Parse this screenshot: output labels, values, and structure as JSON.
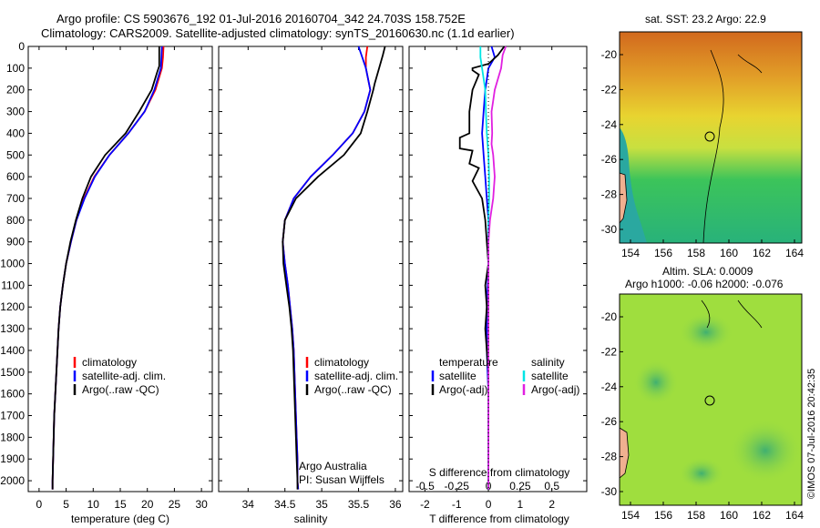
{
  "header": {
    "line1": "Argo profile: CS 5903676_192 01-Jul-2016 20160704_342 24.703S 158.752E",
    "line2": "Climatology: CARS2009. Satellite-adjusted climatology: synTS_20160630.nc (1.1d earlier)"
  },
  "colors": {
    "climatology": "#ff0000",
    "satellite": "#0000ff",
    "argo": "#000000",
    "salinity_satellite": "#00e5e5",
    "salinity_argo": "#e020e0"
  },
  "depth_axis": {
    "ticks": [
      "0",
      "100",
      "200",
      "300",
      "400",
      "500",
      "600",
      "700",
      "800",
      "900",
      "1000",
      "1100",
      "1200",
      "1300",
      "1400",
      "1500",
      "1600",
      "1700",
      "1800",
      "1900",
      "2000"
    ]
  },
  "legend_temperature": {
    "items": [
      "climatology",
      "satellite-adj. clim.",
      "Argo(..raw -QC)"
    ]
  },
  "legend_salinity": {
    "items": [
      "climatology",
      "satellite-adj. clim.",
      "Argo(..raw -QC)"
    ]
  },
  "legend_difference": {
    "temperature_title": "temperature",
    "salinity_title": "salinity",
    "temperature_items": [
      "satellite",
      "Argo(-adj)"
    ],
    "salinity_items": [
      "satellite",
      "Argo(-adj)"
    ]
  },
  "credits": {
    "org": "Argo Australia",
    "pi": "PI: Susan Wijffels"
  },
  "maps": {
    "sst_title": "sat. SST: 23.2  Argo: 22.9",
    "sla_title1": "Altim. SLA: 0.0009",
    "sla_title2": "Argo h1000: -0.06 h2000: -0.076",
    "x_ticks": [
      "154",
      "156",
      "158",
      "160",
      "162",
      "164"
    ],
    "y_ticks": [
      "-20",
      "-22",
      "-24",
      "-26",
      "-28",
      "-30"
    ],
    "watermark": "©IMOS 07-Jul-2016 20:42:35"
  },
  "chart_data": [
    {
      "type": "line",
      "title": "",
      "xlabel": "temperature (deg C)",
      "ylabel": "",
      "xlim": [
        -2,
        32
      ],
      "ylim": [
        2050,
        0
      ],
      "x_ticks": [
        "0",
        "5",
        "10",
        "15",
        "20",
        "25",
        "30"
      ],
      "series": [
        {
          "name": "climatology",
          "color_key": "climatology",
          "points": [
            [
              23,
              0
            ],
            [
              22.9,
              50
            ],
            [
              22.7,
              100
            ],
            [
              21.5,
              200
            ],
            [
              19.5,
              300
            ],
            [
              16.5,
              400
            ],
            [
              13,
              500
            ],
            [
              10.2,
              600
            ],
            [
              8.3,
              700
            ],
            [
              6.9,
              800
            ],
            [
              5.9,
              900
            ],
            [
              5.0,
              1000
            ],
            [
              4.4,
              1100
            ],
            [
              3.9,
              1200
            ],
            [
              3.6,
              1300
            ],
            [
              3.4,
              1400
            ],
            [
              3.2,
              1500
            ],
            [
              3.0,
              1600
            ],
            [
              2.8,
              1700
            ],
            [
              2.7,
              1800
            ],
            [
              2.6,
              1900
            ],
            [
              2.5,
              2000
            ],
            [
              2.5,
              2040
            ]
          ]
        },
        {
          "name": "satellite-adj. clim.",
          "color_key": "satellite",
          "points": [
            [
              22.7,
              0
            ],
            [
              22.6,
              50
            ],
            [
              22.5,
              100
            ],
            [
              21.3,
              200
            ],
            [
              19.5,
              300
            ],
            [
              16.5,
              400
            ],
            [
              13,
              500
            ],
            [
              10.3,
              600
            ],
            [
              8.4,
              700
            ],
            [
              6.9,
              800
            ],
            [
              5.9,
              900
            ],
            [
              5.0,
              1000
            ],
            [
              4.4,
              1100
            ],
            [
              3.9,
              1200
            ],
            [
              3.6,
              1300
            ],
            [
              3.4,
              1400
            ],
            [
              3.2,
              1500
            ],
            [
              3.0,
              1600
            ],
            [
              2.8,
              1700
            ],
            [
              2.7,
              1800
            ],
            [
              2.6,
              1900
            ],
            [
              2.5,
              2000
            ],
            [
              2.5,
              2040
            ]
          ]
        },
        {
          "name": "Argo(..raw -QC)",
          "color_key": "argo",
          "points": [
            [
              22.2,
              0
            ],
            [
              22.2,
              50
            ],
            [
              22.2,
              90
            ],
            [
              21.8,
              120
            ],
            [
              20.8,
              200
            ],
            [
              18.5,
              300
            ],
            [
              16,
              400
            ],
            [
              12.2,
              500
            ],
            [
              9.6,
              600
            ],
            [
              8.0,
              700
            ],
            [
              6.8,
              800
            ],
            [
              5.8,
              900
            ],
            [
              5.0,
              1000
            ],
            [
              4.4,
              1100
            ],
            [
              3.9,
              1200
            ],
            [
              3.6,
              1300
            ],
            [
              3.4,
              1400
            ],
            [
              3.2,
              1500
            ],
            [
              3.0,
              1600
            ],
            [
              2.8,
              1700
            ],
            [
              2.7,
              1800
            ],
            [
              2.6,
              1900
            ],
            [
              2.5,
              2000
            ],
            [
              2.5,
              2040
            ]
          ]
        }
      ]
    },
    {
      "type": "line",
      "title": "",
      "xlabel": "salinity",
      "ylabel": "",
      "xlim": [
        33.6,
        36.1
      ],
      "ylim": [
        2050,
        0
      ],
      "x_ticks": [
        "34",
        "34.5",
        "35",
        "35.5",
        "36"
      ],
      "series": [
        {
          "name": "climatology",
          "color_key": "climatology",
          "points": [
            [
              35.62,
              0
            ],
            [
              35.6,
              50
            ],
            [
              35.6,
              100
            ],
            [
              35.66,
              200
            ],
            [
              35.58,
              300
            ],
            [
              35.42,
              400
            ],
            [
              35.15,
              500
            ],
            [
              34.85,
              600
            ],
            [
              34.62,
              700
            ],
            [
              34.5,
              800
            ],
            [
              34.47,
              900
            ],
            [
              34.5,
              1000
            ],
            [
              34.54,
              1100
            ],
            [
              34.57,
              1200
            ],
            [
              34.6,
              1300
            ],
            [
              34.62,
              1400
            ],
            [
              34.63,
              1500
            ],
            [
              34.64,
              1600
            ],
            [
              34.65,
              1700
            ],
            [
              34.66,
              1800
            ],
            [
              34.67,
              1900
            ],
            [
              34.67,
              2000
            ],
            [
              34.68,
              2040
            ]
          ]
        },
        {
          "name": "satellite-adj. clim.",
          "color_key": "satellite",
          "points": [
            [
              35.5,
              0
            ],
            [
              35.55,
              50
            ],
            [
              35.6,
              100
            ],
            [
              35.66,
              200
            ],
            [
              35.58,
              300
            ],
            [
              35.42,
              400
            ],
            [
              35.15,
              500
            ],
            [
              34.85,
              600
            ],
            [
              34.62,
              700
            ],
            [
              34.5,
              800
            ],
            [
              34.47,
              900
            ],
            [
              34.5,
              1000
            ],
            [
              34.54,
              1100
            ],
            [
              34.57,
              1200
            ],
            [
              34.6,
              1300
            ],
            [
              34.62,
              1400
            ],
            [
              34.63,
              1500
            ],
            [
              34.64,
              1600
            ],
            [
              34.65,
              1700
            ],
            [
              34.66,
              1800
            ],
            [
              34.67,
              1900
            ],
            [
              34.67,
              2000
            ],
            [
              34.68,
              2040
            ]
          ]
        },
        {
          "name": "Argo(..raw -QC)",
          "color_key": "argo",
          "points": [
            [
              35.86,
              0
            ],
            [
              35.83,
              40
            ],
            [
              35.78,
              100
            ],
            [
              35.72,
              170
            ],
            [
              35.7,
              200
            ],
            [
              35.62,
              300
            ],
            [
              35.53,
              400
            ],
            [
              35.3,
              500
            ],
            [
              34.95,
              600
            ],
            [
              34.65,
              700
            ],
            [
              34.5,
              800
            ],
            [
              34.47,
              900
            ],
            [
              34.48,
              1000
            ],
            [
              34.52,
              1100
            ],
            [
              34.56,
              1200
            ],
            [
              34.59,
              1300
            ],
            [
              34.61,
              1400
            ],
            [
              34.62,
              1500
            ],
            [
              34.63,
              1600
            ],
            [
              34.64,
              1700
            ],
            [
              34.65,
              1800
            ],
            [
              34.66,
              1900
            ],
            [
              34.67,
              2000
            ],
            [
              34.67,
              2040
            ]
          ]
        }
      ]
    },
    {
      "type": "line",
      "title": "",
      "xlabel": "T difference from climatology",
      "xlabel2": "S difference from climatology",
      "ylabel": "",
      "xlim": [
        -2.5,
        3.1
      ],
      "ylim": [
        2050,
        0
      ],
      "x_ticks": [
        "-2",
        "-1",
        "0",
        "1",
        "2"
      ],
      "x2_ticks": [
        "-0.5",
        "-0.25",
        "0",
        "0.25",
        "0.5"
      ],
      "series": [
        {
          "name": "temperature satellite",
          "color_key": "satellite",
          "points": [
            [
              0.1,
              0
            ],
            [
              0.2,
              50
            ],
            [
              0,
              100
            ],
            [
              -0.1,
              200
            ],
            [
              -0.15,
              300
            ],
            [
              -0.2,
              400
            ],
            [
              -0.15,
              500
            ],
            [
              -0.1,
              600
            ],
            [
              -0.05,
              700
            ],
            [
              0,
              800
            ],
            [
              0,
              1000
            ],
            [
              -0.05,
              1200
            ],
            [
              -0.05,
              1400
            ],
            [
              0,
              1600
            ],
            [
              0,
              1800
            ],
            [
              0,
              2000
            ],
            [
              0,
              2040
            ]
          ]
        },
        {
          "name": "temperature Argo(-adj)",
          "color_key": "argo",
          "points": [
            [
              0.5,
              0
            ],
            [
              0.3,
              40
            ],
            [
              0,
              80
            ],
            [
              -0.5,
              100
            ],
            [
              -0.5,
              110
            ],
            [
              -0.3,
              130
            ],
            [
              -0.5,
              200
            ],
            [
              -0.6,
              300
            ],
            [
              -0.6,
              400
            ],
            [
              -0.9,
              420
            ],
            [
              -0.9,
              470
            ],
            [
              -0.5,
              480
            ],
            [
              -0.6,
              540
            ],
            [
              -0.3,
              560
            ],
            [
              -0.5,
              620
            ],
            [
              -0.2,
              700
            ],
            [
              -0.1,
              800
            ],
            [
              -0.05,
              900
            ],
            [
              0,
              1000
            ],
            [
              -0.1,
              1100
            ],
            [
              -0.05,
              1200
            ],
            [
              -0.1,
              1300
            ],
            [
              -0.05,
              1400
            ],
            [
              0,
              1500
            ],
            [
              0,
              1700
            ],
            [
              0,
              1900
            ],
            [
              0,
              2040
            ]
          ]
        },
        {
          "name": "salinity satellite",
          "color_key": "salinity_satellite",
          "points": [
            [
              -0.25,
              0
            ],
            [
              -0.25,
              50
            ],
            [
              -0.2,
              100
            ],
            [
              -0.1,
              200
            ],
            [
              -0.08,
              300
            ],
            [
              -0.05,
              400
            ],
            [
              0,
              500
            ],
            [
              0.02,
              600
            ],
            [
              0.02,
              700
            ],
            [
              0,
              800
            ],
            [
              0,
              1000
            ],
            [
              0,
              1200
            ],
            [
              0,
              1400
            ],
            [
              0,
              1600
            ],
            [
              0,
              1800
            ],
            [
              0,
              2000
            ],
            [
              0,
              2040
            ]
          ]
        },
        {
          "name": "salinity Argo(-adj)",
          "color_key": "salinity_argo",
          "points": [
            [
              0.55,
              0
            ],
            [
              0.45,
              40
            ],
            [
              0.4,
              100
            ],
            [
              0.3,
              150
            ],
            [
              0.2,
              200
            ],
            [
              0.15,
              250
            ],
            [
              0.1,
              300
            ],
            [
              0.12,
              400
            ],
            [
              0.1,
              450
            ],
            [
              0.15,
              500
            ],
            [
              0.2,
              600
            ],
            [
              0.15,
              700
            ],
            [
              0.05,
              800
            ],
            [
              0,
              900
            ],
            [
              0,
              1000
            ],
            [
              0,
              1200
            ],
            [
              0,
              1400
            ],
            [
              0,
              1600
            ],
            [
              0,
              1800
            ],
            [
              0,
              2000
            ],
            [
              0,
              2040
            ]
          ]
        }
      ]
    }
  ]
}
